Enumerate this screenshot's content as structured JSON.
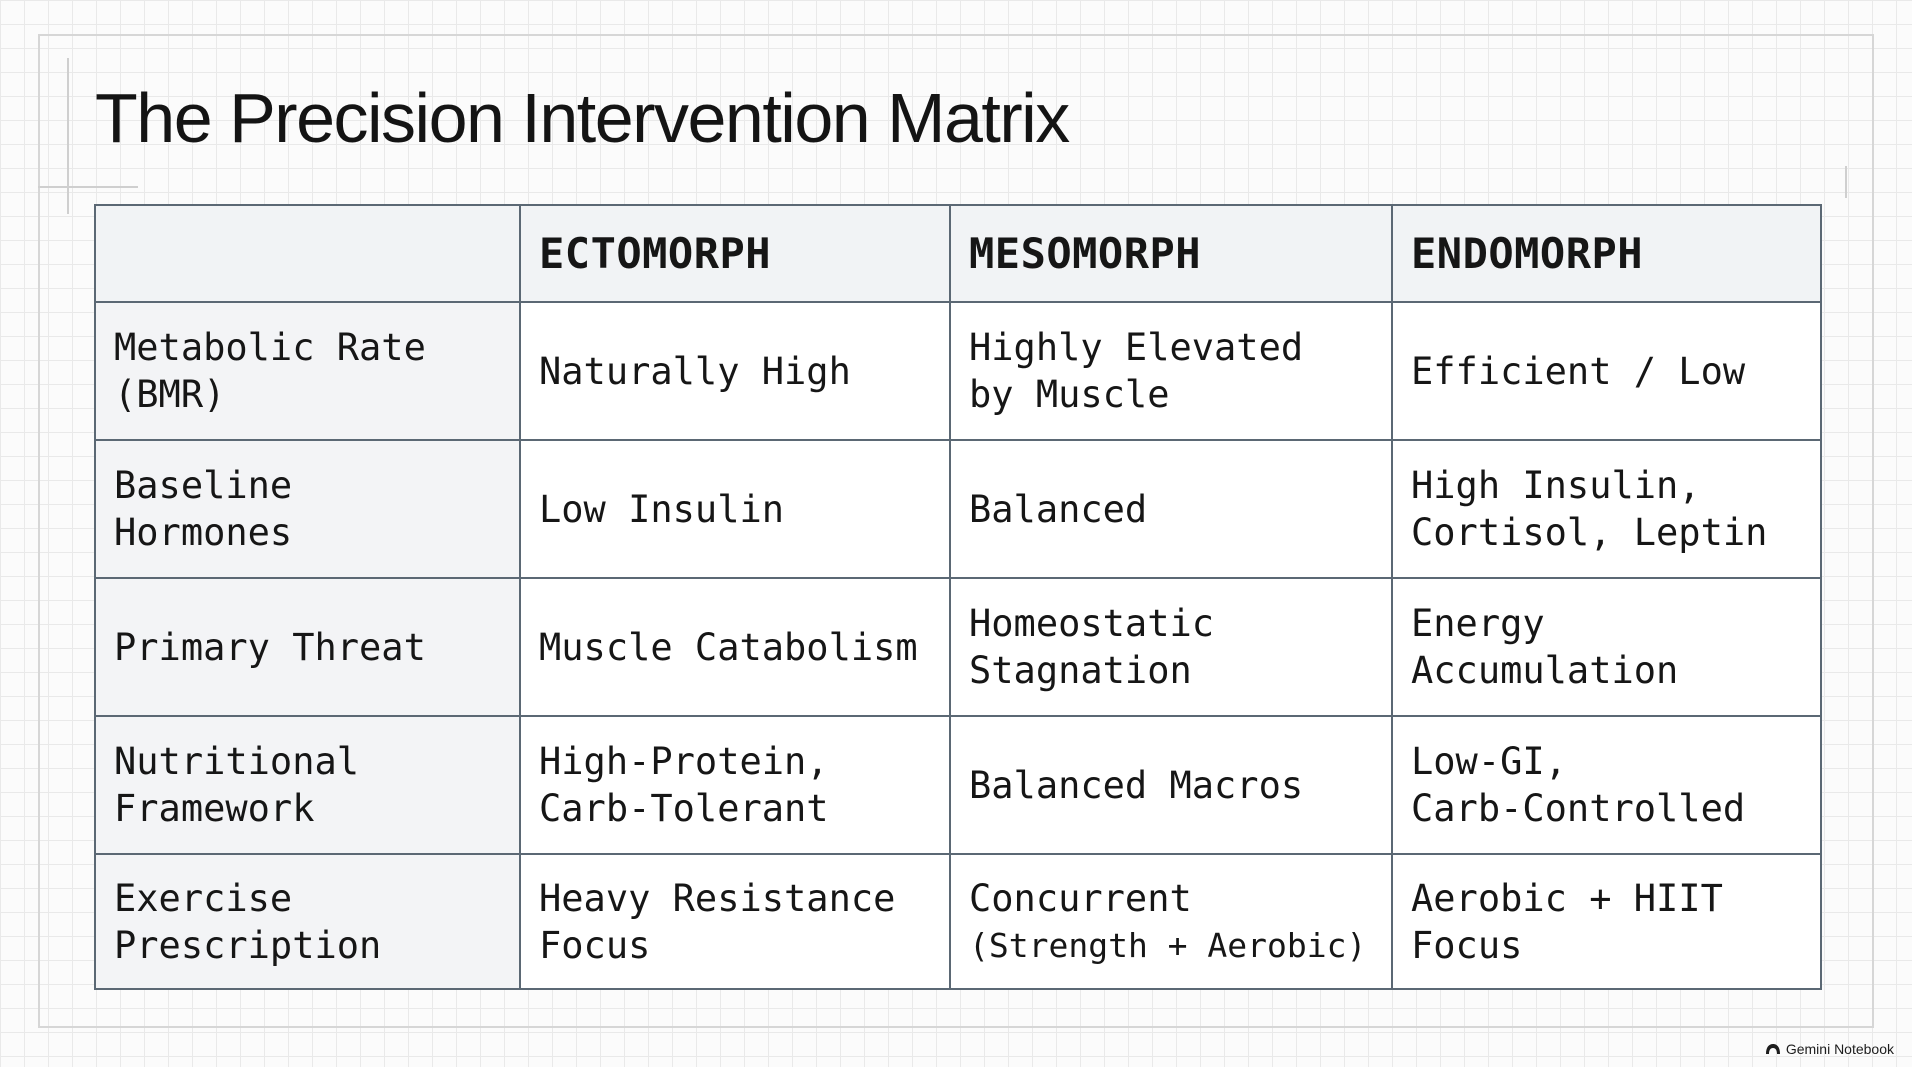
{
  "title": "The Precision Intervention Matrix",
  "colors": {
    "ectomorph": "#2aa3bd",
    "mesomorph": "#d06e4e",
    "endomorph": "#8fa88c",
    "grid_border": "#5b6874"
  },
  "table": {
    "corner": "",
    "columns": [
      "ECTOMORPH",
      "MESOMORPH",
      "ENDOMORPH"
    ],
    "rows": [
      {
        "label": [
          "Metabolic Rate",
          "(BMR)"
        ],
        "cells": [
          [
            "Naturally High"
          ],
          [
            "Highly Elevated",
            "by Muscle"
          ],
          [
            "Efficient / Low"
          ]
        ]
      },
      {
        "label": [
          "Baseline",
          "Hormones"
        ],
        "cells": [
          [
            "Low Insulin"
          ],
          [
            "Balanced"
          ],
          [
            "High Insulin,",
            "Cortisol, Leptin"
          ]
        ]
      },
      {
        "label": [
          "Primary Threat"
        ],
        "cells": [
          [
            "Muscle Catabolism"
          ],
          [
            "Homeostatic",
            "Stagnation"
          ],
          [
            "Energy",
            "Accumulation"
          ]
        ]
      },
      {
        "label": [
          "Nutritional",
          "Framework"
        ],
        "cells": [
          [
            "High-Protein,",
            "Carb-Tolerant"
          ],
          [
            "Balanced Macros"
          ],
          [
            "Low-GI,",
            "Carb-Controlled"
          ]
        ]
      },
      {
        "label": [
          "Exercise",
          "Prescription"
        ],
        "cells": [
          [
            "Heavy Resistance",
            "Focus"
          ],
          [
            "Concurrent",
            "(Strength + Aerobic)"
          ],
          [
            "Aerobic + HIIT",
            "Focus"
          ]
        ]
      }
    ]
  },
  "watermark": {
    "icon": "gemini-notebook-icon",
    "text": "Gemini Notebook"
  }
}
